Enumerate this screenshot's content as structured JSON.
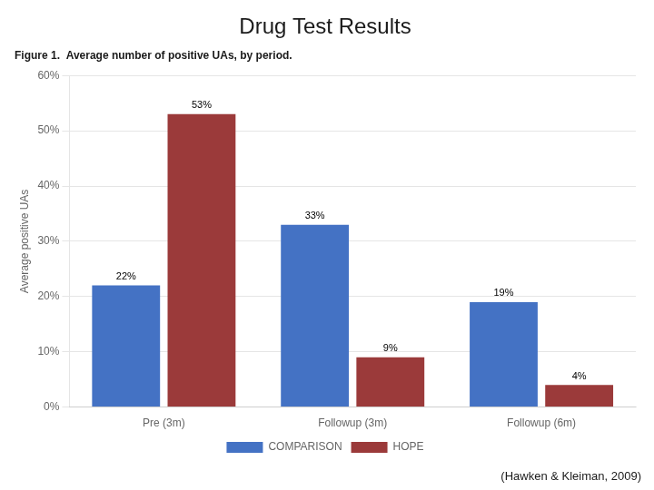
{
  "chart_data": {
    "type": "bar",
    "title": "Drug Test Results",
    "subtitle": "Figure 1.  Average number of positive UAs, by period.",
    "annotations": [
      "(Hawken & Kleiman, 2009)"
    ],
    "categories": [
      "Pre (3m)",
      "Followup (3m)",
      "Followup (6m)"
    ],
    "series": [
      {
        "name": "COMPARISON",
        "color": "#4472C4",
        "values": [
          22,
          33,
          19
        ],
        "value_labels": [
          "22%",
          "33%",
          "19%"
        ]
      },
      {
        "name": "HOPE",
        "color": "#9B3A3A",
        "values": [
          53,
          9,
          4
        ],
        "value_labels": [
          "53%",
          "9%",
          "4%"
        ]
      }
    ],
    "y_label": "Average positive UAs",
    "ylim": [
      0,
      60
    ],
    "yticks": [
      {
        "value": 0,
        "label": "0%"
      },
      {
        "value": 10,
        "label": "10%"
      },
      {
        "value": 20,
        "label": "20%"
      },
      {
        "value": 30,
        "label": "30%"
      },
      {
        "value": 40,
        "label": "40%"
      },
      {
        "value": 50,
        "label": "50%"
      },
      {
        "value": 60,
        "label": "60%"
      }
    ],
    "grid": true,
    "legend": "bottom",
    "data_labels": true
  }
}
